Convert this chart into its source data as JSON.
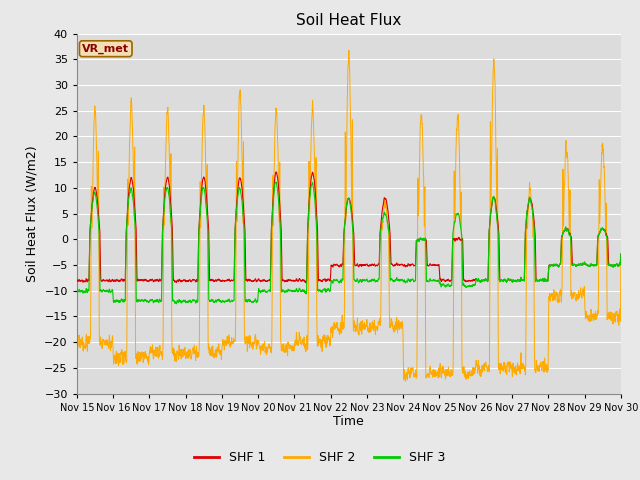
{
  "title": "Soil Heat Flux",
  "xlabel": "Time",
  "ylabel": "Soil Heat Flux (W/m2)",
  "ylim": [
    -30,
    40
  ],
  "yticks": [
    -30,
    -25,
    -20,
    -15,
    -10,
    -5,
    0,
    5,
    10,
    15,
    20,
    25,
    30,
    35,
    40
  ],
  "xtick_labels": [
    "Nov 15",
    "Nov 16",
    "Nov 17",
    "Nov 18",
    "Nov 19",
    "Nov 20",
    "Nov 21",
    "Nov 22",
    "Nov 23",
    "Nov 24",
    "Nov 25",
    "Nov 26",
    "Nov 27",
    "Nov 28",
    "Nov 29",
    "Nov 30"
  ],
  "legend_labels": [
    "SHF 1",
    "SHF 2",
    "SHF 3"
  ],
  "legend_colors": [
    "#dd0000",
    "#ffaa00",
    "#00cc00"
  ],
  "annotation_text": "VR_met",
  "line_colors": [
    "#dd0000",
    "#ffaa00",
    "#00cc00"
  ],
  "bg_color": "#e8e8e8",
  "plot_bg_color": "#dcdcdc",
  "grid_color": "#ffffff"
}
